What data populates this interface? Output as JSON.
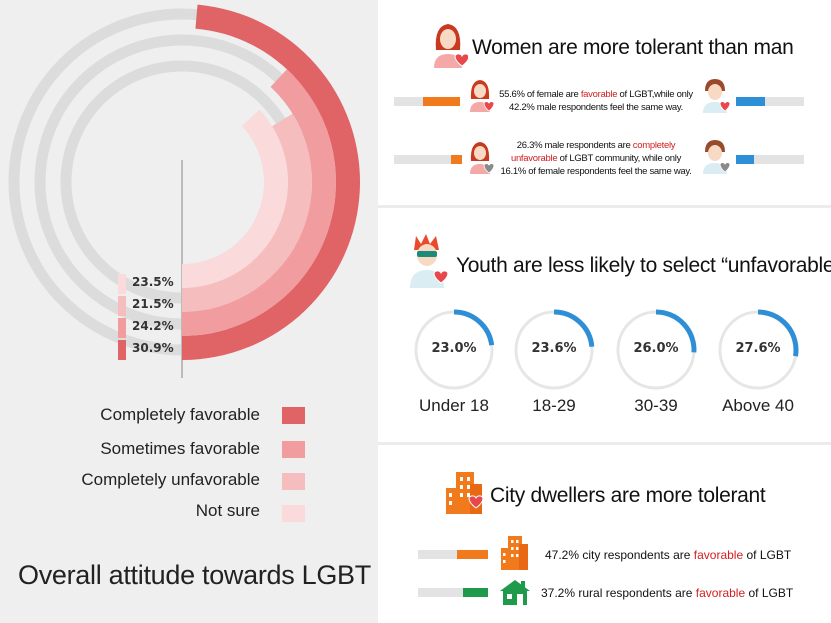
{
  "overall": {
    "title": "Overall attitude towards LGBT",
    "legend": [
      {
        "label": "Completely favorable",
        "color": "#e06366"
      },
      {
        "label": "Sometimes favorable",
        "color": "#f19c9e"
      },
      {
        "label": "Completely unfavorable",
        "color": "#f6bdbe"
      },
      {
        "label": "Not sure",
        "color": "#fadada"
      }
    ]
  },
  "chart_data": {
    "type": "radial-bar",
    "title": "Overall attitude towards LGBT",
    "categories": [
      "Not sure",
      "Completely unfavorable",
      "Sometimes favorable",
      "Completely favorable"
    ],
    "values": [
      23.5,
      21.5,
      24.2,
      30.9
    ],
    "labels": [
      "23.5%",
      "21.5%",
      "24.2%",
      "30.9%"
    ],
    "colors": [
      "#fadada",
      "#f6bdbe",
      "#f19c9e",
      "#e06366"
    ],
    "unit": "%"
  },
  "gender": {
    "title": "Women are more tolerant than man",
    "row1": {
      "pre": "55.6% of female are ",
      "hl": "favorable",
      "post": " of LGBT,while only",
      "line2": "42.2% male respondents feel the same way.",
      "female_value": 55.6,
      "male_value": 42.2
    },
    "row2": {
      "pre": "26.3% male respondents are ",
      "hl1": "completely",
      "hl2": "unfavorable",
      "post": " of LGBT community, while only",
      "line3": "16.1% of female respondents feel the same way.",
      "female_value": 16.1,
      "male_value": 26.3
    },
    "female_color": "#f07a1c",
    "male_color": "#2f8fd6"
  },
  "youth": {
    "title": "Youth are less likely to select “unfavorable”",
    "groups": [
      {
        "label": "Under 18",
        "value": 23.0,
        "text": "23.0%"
      },
      {
        "label": "18-29",
        "value": 23.6,
        "text": "23.6%"
      },
      {
        "label": "30-39",
        "value": 26.0,
        "text": "26.0%"
      },
      {
        "label": "Above 40",
        "value": 27.6,
        "text": "27.6%"
      }
    ],
    "ring_color": "#2f8fd6"
  },
  "city": {
    "title": "City dwellers are more tolerant",
    "city_row": {
      "value_text": "47.2% city respondents are ",
      "hl": "favorable",
      "post": " of LGBT",
      "value": 47.2
    },
    "rural_row": {
      "value_text": "37.2% rural respondents are ",
      "hl": "favorable",
      "post": " of LGBT",
      "value": 37.2
    },
    "city_color": "#f07a1c",
    "rural_color": "#1e9a4a"
  }
}
